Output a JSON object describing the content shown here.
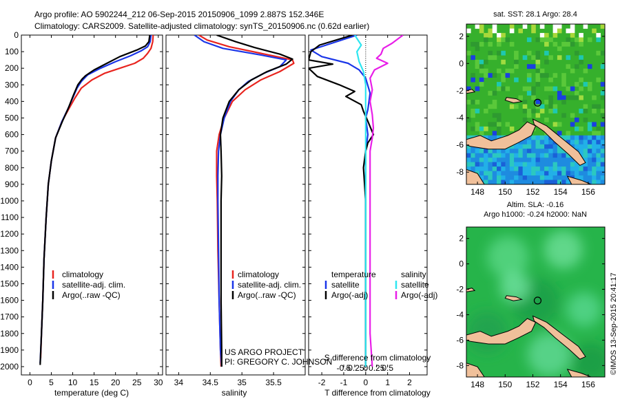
{
  "header": {
    "line1": "Argo profile: AO 5902244_212 06-Sep-2015 20150906_1099 2.887S 152.346E",
    "line2": "Climatology: CARS2009. Satellite-adjusted climatology: synTS_20150906.nc (0.62d earlier)"
  },
  "side_stamp": "©IMOS 13-Sep-2015 20:41:17",
  "colors": {
    "climatology": "#e8241e",
    "satellite": "#1a35e8",
    "argo": "#000000",
    "sal_satellite": "#2ee6f0",
    "sal_argo": "#e81ee8",
    "land": "#f0c09a"
  },
  "chart_data": [
    {
      "type": "line",
      "id": "temperature",
      "xlabel": "temperature (deg C)",
      "xlim": [
        -2,
        31
      ],
      "xticks": [
        0,
        5,
        10,
        15,
        20,
        25,
        30
      ],
      "ylim": [
        0,
        2050
      ],
      "yticks": [
        0,
        100,
        200,
        300,
        400,
        500,
        600,
        700,
        800,
        900,
        1000,
        1100,
        1200,
        1300,
        1400,
        1500,
        1600,
        1700,
        1800,
        1900,
        2000
      ],
      "legend": [
        "climatology",
        "satellite-adj. clim.",
        "Argo(..raw -QC)"
      ],
      "series": [
        {
          "name": "climatology",
          "color": "#e8241e",
          "points": [
            [
              28.8,
              0
            ],
            [
              28.7,
              40
            ],
            [
              28.3,
              80
            ],
            [
              27.5,
              110
            ],
            [
              26.5,
              140
            ],
            [
              24.5,
              170
            ],
            [
              21,
              200
            ],
            [
              17.5,
              230
            ],
            [
              14.5,
              270
            ],
            [
              12,
              320
            ],
            [
              10.5,
              380
            ],
            [
              9,
              450
            ],
            [
              7.5,
              520
            ],
            [
              6,
              620
            ],
            [
              5,
              760
            ],
            [
              4.3,
              900
            ],
            [
              3.8,
              1100
            ],
            [
              3.3,
              1350
            ],
            [
              3.0,
              1600
            ],
            [
              2.7,
              1800
            ],
            [
              2.5,
              1950
            ]
          ]
        },
        {
          "name": "satellite",
          "color": "#1a35e8",
          "points": [
            [
              28.3,
              0
            ],
            [
              28.1,
              40
            ],
            [
              27.5,
              70
            ],
            [
              26,
              95
            ],
            [
              23.5,
              125
            ],
            [
              20,
              160
            ],
            [
              16.5,
              200
            ],
            [
              13.5,
              240
            ],
            [
              12,
              280
            ],
            [
              11,
              320
            ],
            [
              10,
              380
            ],
            [
              8.8,
              450
            ],
            [
              7.5,
              520
            ],
            [
              6,
              620
            ],
            [
              5,
              760
            ],
            [
              4.3,
              900
            ],
            [
              3.8,
              1100
            ],
            [
              3.3,
              1350
            ],
            [
              3.0,
              1600
            ],
            [
              2.7,
              1800
            ],
            [
              2.4,
              1980
            ]
          ]
        },
        {
          "name": "argo",
          "color": "#000000",
          "points": [
            [
              28.0,
              0
            ],
            [
              27.8,
              40
            ],
            [
              27,
              65
            ],
            [
              25,
              90
            ],
            [
              21,
              130
            ],
            [
              18,
              170
            ],
            [
              15,
              210
            ],
            [
              13,
              245
            ],
            [
              12.2,
              265
            ],
            [
              11.2,
              300
            ],
            [
              10.2,
              360
            ],
            [
              9,
              440
            ],
            [
              7.6,
              520
            ],
            [
              6,
              620
            ],
            [
              5,
              760
            ],
            [
              4.3,
              900
            ],
            [
              3.8,
              1100
            ],
            [
              3.3,
              1350
            ],
            [
              3.0,
              1600
            ],
            [
              2.7,
              1800
            ],
            [
              2.4,
              1990
            ]
          ]
        }
      ]
    },
    {
      "type": "line",
      "id": "salinity",
      "xlabel": "salinity",
      "xlim": [
        33.8,
        36.0
      ],
      "xticks": [
        34,
        34.5,
        35,
        35.5
      ],
      "ylim": [
        0,
        2050
      ],
      "legend": [
        "climatology",
        "satellite-adj. clim.",
        "Argo(..raw -QC)"
      ],
      "annotation": [
        "US ARGO PROJECT",
        "PI: GREGORY C. JOHNSON"
      ],
      "series": [
        {
          "name": "climatology",
          "color": "#e8241e",
          "points": [
            [
              34.32,
              0
            ],
            [
              34.45,
              30
            ],
            [
              34.8,
              70
            ],
            [
              35.3,
              110
            ],
            [
              35.8,
              150
            ],
            [
              35.82,
              170
            ],
            [
              35.6,
              220
            ],
            [
              35.3,
              270
            ],
            [
              35.05,
              330
            ],
            [
              34.85,
              400
            ],
            [
              34.72,
              500
            ],
            [
              34.64,
              600
            ],
            [
              34.6,
              700
            ],
            [
              34.6,
              850
            ],
            [
              34.61,
              1000
            ],
            [
              34.62,
              1300
            ],
            [
              34.64,
              1600
            ],
            [
              34.66,
              1900
            ],
            [
              34.67,
              2000
            ]
          ]
        },
        {
          "name": "satellite",
          "color": "#1a35e8",
          "points": [
            [
              34.25,
              0
            ],
            [
              34.4,
              40
            ],
            [
              34.7,
              80
            ],
            [
              35.3,
              120
            ],
            [
              35.7,
              150
            ],
            [
              35.6,
              190
            ],
            [
              35.35,
              230
            ],
            [
              35.1,
              280
            ],
            [
              34.95,
              330
            ],
            [
              34.82,
              400
            ],
            [
              34.72,
              500
            ],
            [
              34.66,
              600
            ],
            [
              34.63,
              700
            ],
            [
              34.62,
              850
            ],
            [
              34.62,
              1000
            ],
            [
              34.63,
              1300
            ],
            [
              34.64,
              1600
            ],
            [
              34.66,
              1900
            ],
            [
              34.68,
              2000
            ]
          ]
        },
        {
          "name": "argo",
          "color": "#000000",
          "points": [
            [
              34.6,
              0
            ],
            [
              34.9,
              40
            ],
            [
              35.2,
              75
            ],
            [
              35.6,
              115
            ],
            [
              35.8,
              145
            ],
            [
              35.7,
              175
            ],
            [
              35.4,
              220
            ],
            [
              35.15,
              270
            ],
            [
              34.95,
              330
            ],
            [
              34.8,
              400
            ],
            [
              34.7,
              500
            ],
            [
              34.66,
              600
            ],
            [
              34.67,
              700
            ],
            [
              34.68,
              850
            ],
            [
              34.67,
              1000
            ],
            [
              34.67,
              1300
            ],
            [
              34.67,
              1600
            ],
            [
              34.68,
              1900
            ],
            [
              34.68,
              2000
            ]
          ]
        }
      ]
    },
    {
      "type": "line",
      "id": "difference",
      "xlabel_top": "S difference from climatology",
      "xlabel": "T difference from climatology",
      "xlim": [
        -2.6,
        2.8
      ],
      "xticks": [
        -2,
        -1,
        0,
        1,
        2
      ],
      "top_ticks": [
        {
          "v": -1.0,
          "label": "-0.5"
        },
        {
          "v": -0.5,
          "label": "-0.25"
        },
        {
          "v": 0,
          "label": "0"
        },
        {
          "v": 0.5,
          "label": "0.25"
        },
        {
          "v": 1.0,
          "label": "0.5"
        }
      ],
      "ylim": [
        0,
        2050
      ],
      "legend_headers": [
        "temperature",
        "salinity"
      ],
      "legend": [
        "satellite",
        "Argo(-adj)",
        "satellite",
        "Argo(-adj)"
      ],
      "series": [
        {
          "name": "T satellite",
          "color": "#1a35e8",
          "points": [
            [
              -0.4,
              0
            ],
            [
              -1.8,
              60
            ],
            [
              -2.5,
              90
            ],
            [
              -2.0,
              130
            ],
            [
              -0.8,
              170
            ],
            [
              -0.3,
              210
            ],
            [
              0.0,
              260
            ],
            [
              0.2,
              350
            ],
            [
              0.1,
              450
            ],
            [
              0.0,
              500
            ],
            [
              0.1,
              600
            ],
            [
              0.0,
              700
            ],
            [
              0.0,
              900
            ],
            [
              0.0,
              1200
            ],
            [
              0.0,
              1600
            ],
            [
              0.0,
              2000
            ]
          ]
        },
        {
          "name": "T argo",
          "color": "#000000",
          "points": [
            [
              -0.6,
              0
            ],
            [
              -2.1,
              60
            ],
            [
              -2.5,
              100
            ],
            [
              -2.6,
              150
            ],
            [
              -1.5,
              175
            ],
            [
              -2.6,
              200
            ],
            [
              -2.2,
              250
            ],
            [
              -1.2,
              300
            ],
            [
              -0.5,
              340
            ],
            [
              -0.9,
              370
            ],
            [
              -0.2,
              420
            ],
            [
              -0.1,
              460
            ],
            [
              0.1,
              520
            ],
            [
              0.35,
              600
            ],
            [
              0.1,
              650
            ],
            [
              0.0,
              700
            ],
            [
              -0.1,
              800
            ],
            [
              0.0,
              1000
            ],
            [
              0.0,
              1200
            ],
            [
              0.0,
              1500
            ],
            [
              0.0,
              1800
            ],
            [
              0.0,
              2000
            ]
          ]
        },
        {
          "name": "S satellite",
          "color": "#2ee6f0",
          "points": [
            [
              -0.5,
              0
            ],
            [
              -0.2,
              60
            ],
            [
              -0.4,
              100
            ],
            [
              -0.3,
              160
            ],
            [
              -0.1,
              220
            ],
            [
              0.0,
              300
            ],
            [
              0.0,
              400
            ],
            [
              0.0,
              600
            ],
            [
              0.0,
              1000
            ],
            [
              0.0,
              1500
            ],
            [
              0.0,
              2000
            ]
          ]
        },
        {
          "name": "S argo",
          "color": "#e81ee8",
          "points": [
            [
              1.7,
              0
            ],
            [
              1.2,
              50
            ],
            [
              0.8,
              80
            ],
            [
              0.7,
              115
            ],
            [
              0.5,
              140
            ],
            [
              1.0,
              170
            ],
            [
              0.4,
              210
            ],
            [
              0.2,
              260
            ],
            [
              0.3,
              330
            ],
            [
              0.2,
              400
            ],
            [
              0.3,
              480
            ],
            [
              0.35,
              560
            ],
            [
              0.3,
              620
            ],
            [
              0.2,
              700
            ],
            [
              0.2,
              900
            ],
            [
              0.2,
              1200
            ],
            [
              0.2,
              1500
            ],
            [
              0.2,
              1800
            ],
            [
              0.3,
              2000
            ]
          ]
        }
      ]
    },
    {
      "type": "heatmap",
      "id": "sst_map",
      "title": "sat. SST: 28.1  Argo: 28.4",
      "xlim": [
        147.2,
        157.2
      ],
      "ylim": [
        -8.9,
        2.9
      ],
      "xticks": [
        148,
        150,
        152,
        154,
        156
      ],
      "yticks": [
        2,
        0,
        -2,
        -4,
        -6,
        -8
      ],
      "argo_position": [
        152.346,
        -2.887
      ]
    },
    {
      "type": "heatmap",
      "id": "sla_map",
      "title": [
        "Altim. SLA: -0.16",
        "Argo h1000: -0.24  h2000: NaN"
      ],
      "xlim": [
        147.2,
        157.2
      ],
      "ylim": [
        -8.9,
        2.9
      ],
      "xticks": [
        148,
        150,
        152,
        154,
        156
      ],
      "yticks": [
        2,
        0,
        -2,
        -4,
        -6,
        -8
      ],
      "argo_position": [
        152.346,
        -2.887
      ]
    }
  ]
}
